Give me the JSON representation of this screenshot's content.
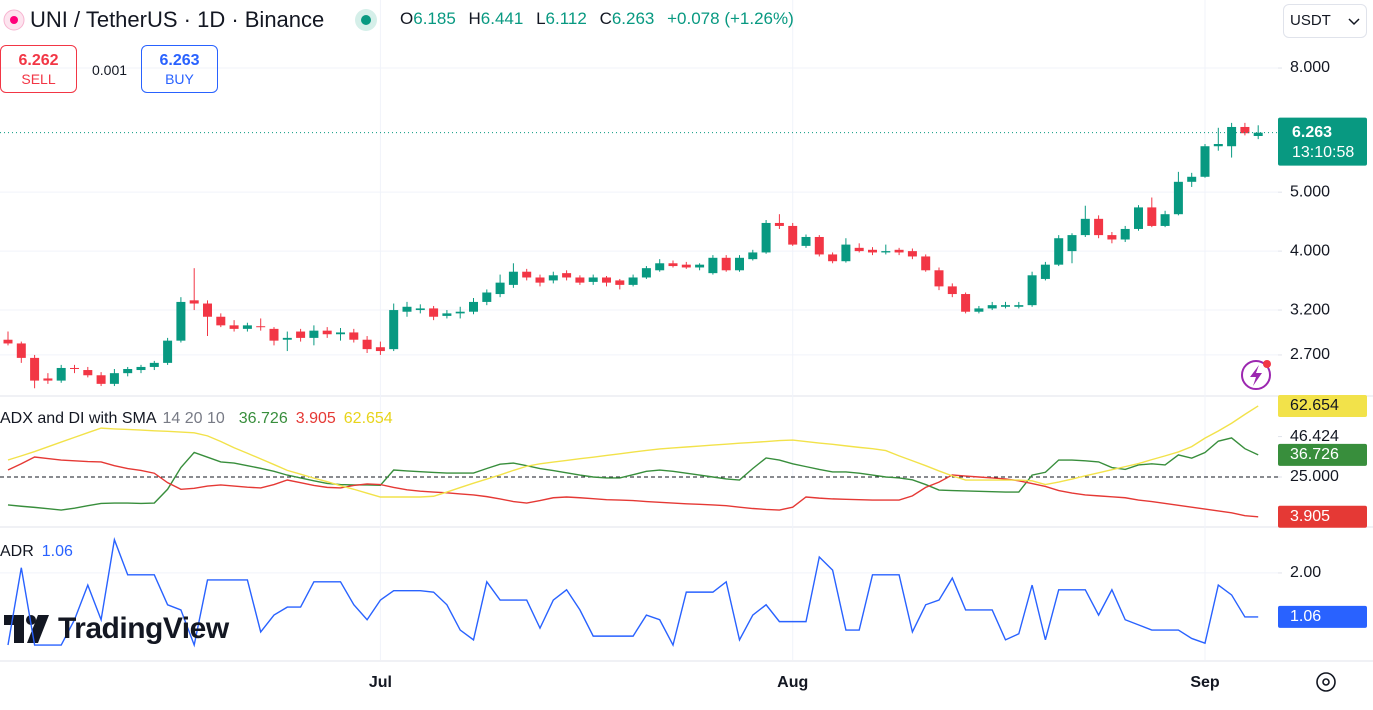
{
  "header": {
    "title": "UNI / TetherUS · 1D · Binance",
    "ohlc_labels": [
      "O",
      "H",
      "L",
      "C"
    ],
    "change": "+0.078 (+1.26%)",
    "currency": "USDT"
  },
  "trade": {
    "sell_price": "6.262",
    "sell_label": "SELL",
    "spread": "0.001",
    "buy_price": "6.263",
    "buy_label": "BUY"
  },
  "countdown": "13:10:58",
  "watermark": "TradingView",
  "chart_data": [
    {
      "type": "candlestick",
      "categories": [
        null,
        null,
        null,
        null,
        null,
        null,
        null,
        null,
        null,
        null,
        null,
        null,
        null,
        null,
        null,
        null,
        null,
        null,
        null,
        null,
        null,
        null,
        null,
        null,
        null,
        null,
        null,
        null,
        "Jul",
        null,
        null,
        null,
        null,
        null,
        null,
        null,
        null,
        null,
        null,
        null,
        null,
        null,
        null,
        null,
        null,
        null,
        null,
        null,
        null,
        null,
        null,
        null,
        null,
        null,
        null,
        null,
        null,
        null,
        null,
        "Aug",
        null,
        null,
        null,
        null,
        null,
        null,
        null,
        null,
        null,
        null,
        null,
        null,
        null,
        null,
        null,
        null,
        null,
        null,
        null,
        null,
        null,
        null,
        null,
        null,
        null,
        null,
        null,
        null,
        null,
        null,
        "Sep",
        null,
        null,
        null,
        null
      ],
      "series": [
        {
          "up_color": "#089981",
          "down_color": "#f23645",
          "open": [
            2.86,
            2.82,
            2.67,
            2.47,
            2.45,
            2.57,
            2.55,
            2.5,
            2.42,
            2.52,
            2.55,
            2.58,
            2.62,
            2.85,
            3.32,
            3.28,
            3.12,
            3.02,
            2.98,
            3.01,
            2.98,
            2.86,
            2.95,
            2.88,
            2.96,
            2.92,
            2.94,
            2.86,
            2.78,
            2.76,
            3.18,
            3.2,
            3.22,
            3.13,
            3.16,
            3.18,
            3.3,
            3.4,
            3.52,
            3.7,
            3.62,
            3.58,
            3.68,
            3.62,
            3.56,
            3.62,
            3.58,
            3.52,
            3.62,
            3.72,
            3.82,
            3.8,
            3.76,
            3.68,
            3.9,
            3.72,
            3.88,
            3.98,
            4.45,
            4.4,
            4.08,
            4.22,
            3.95,
            3.85,
            4.05,
            4.02,
            3.98,
            4.02,
            4.0,
            3.92,
            3.72,
            3.5,
            3.4,
            3.18,
            3.22,
            3.24,
            3.24,
            3.26,
            3.6,
            3.8,
            4.0,
            4.25,
            4.52,
            4.25,
            4.18,
            4.35,
            4.72,
            4.4,
            4.6,
            5.2,
            5.3,
            5.95,
            5.95,
            6.4,
            6.185
          ],
          "high": [
            2.95,
            2.84,
            2.7,
            2.52,
            2.6,
            2.6,
            2.58,
            2.53,
            2.56,
            2.58,
            2.6,
            2.64,
            2.88,
            3.36,
            3.75,
            3.32,
            3.16,
            3.08,
            3.05,
            3.1,
            3.0,
            2.95,
            2.98,
            3.02,
            3.0,
            2.99,
            2.98,
            2.9,
            2.84,
            3.28,
            3.3,
            3.27,
            3.25,
            3.2,
            3.24,
            3.35,
            3.46,
            3.66,
            3.82,
            3.74,
            3.66,
            3.7,
            3.72,
            3.65,
            3.66,
            3.64,
            3.6,
            3.66,
            3.78,
            3.88,
            3.86,
            3.84,
            3.82,
            3.94,
            3.94,
            3.94,
            4.02,
            4.5,
            4.6,
            4.45,
            4.26,
            4.25,
            3.98,
            4.2,
            4.12,
            4.06,
            4.1,
            4.05,
            4.04,
            3.95,
            3.76,
            3.54,
            3.42,
            3.25,
            3.3,
            3.3,
            3.3,
            3.7,
            3.84,
            4.25,
            4.28,
            4.75,
            4.58,
            4.3,
            4.4,
            4.76,
            4.9,
            4.66,
            5.4,
            5.38,
            6.0,
            6.38,
            6.5,
            6.5,
            6.441
          ],
          "low": [
            2.8,
            2.62,
            2.38,
            2.42,
            2.43,
            2.52,
            2.48,
            2.4,
            2.4,
            2.49,
            2.52,
            2.55,
            2.6,
            2.83,
            3.2,
            2.9,
            3.0,
            2.95,
            2.95,
            2.96,
            2.8,
            2.74,
            2.84,
            2.8,
            2.88,
            2.85,
            2.83,
            2.72,
            2.7,
            2.74,
            3.12,
            3.16,
            3.08,
            3.1,
            3.1,
            3.15,
            3.26,
            3.36,
            3.48,
            3.58,
            3.5,
            3.54,
            3.58,
            3.52,
            3.52,
            3.5,
            3.46,
            3.5,
            3.6,
            3.7,
            3.76,
            3.74,
            3.72,
            3.66,
            3.7,
            3.7,
            3.86,
            3.96,
            4.35,
            4.08,
            4.05,
            3.92,
            3.82,
            3.83,
            3.98,
            3.94,
            3.95,
            3.94,
            3.88,
            3.7,
            3.45,
            3.36,
            3.16,
            3.16,
            3.2,
            3.22,
            3.22,
            3.24,
            3.58,
            3.78,
            3.82,
            4.22,
            4.2,
            4.12,
            4.14,
            4.32,
            4.38,
            4.38,
            4.58,
            5.1,
            5.28,
            5.85,
            5.7,
            6.2,
            6.112
          ],
          "close": [
            2.82,
            2.67,
            2.45,
            2.45,
            2.57,
            2.56,
            2.5,
            2.42,
            2.52,
            2.56,
            2.58,
            2.62,
            2.85,
            3.3,
            3.28,
            3.12,
            3.02,
            2.98,
            3.02,
            3.0,
            2.85,
            2.88,
            2.88,
            2.96,
            2.92,
            2.94,
            2.86,
            2.76,
            2.74,
            3.2,
            3.24,
            3.22,
            3.12,
            3.16,
            3.18,
            3.3,
            3.42,
            3.55,
            3.7,
            3.62,
            3.55,
            3.65,
            3.62,
            3.55,
            3.62,
            3.55,
            3.52,
            3.62,
            3.75,
            3.82,
            3.78,
            3.76,
            3.8,
            3.9,
            3.72,
            3.9,
            3.98,
            4.45,
            4.4,
            4.1,
            4.22,
            3.95,
            3.85,
            4.1,
            4.0,
            3.98,
            4.0,
            3.98,
            3.92,
            3.72,
            3.5,
            3.4,
            3.18,
            3.22,
            3.26,
            3.26,
            3.26,
            3.65,
            3.8,
            4.2,
            4.25,
            4.52,
            4.25,
            4.18,
            4.35,
            4.72,
            4.4,
            4.6,
            5.2,
            5.3,
            5.95,
            6.0,
            6.4,
            6.25,
            6.263
          ]
        }
      ],
      "ylim": [
        2.32,
        10.35
      ],
      "log_scale": true,
      "yticks": [
        {
          "value": 8,
          "label": "8.000"
        },
        {
          "value": 5,
          "label": "5.000"
        },
        {
          "value": 4,
          "label": "4.000"
        },
        {
          "value": 3.2,
          "label": "3.200"
        },
        {
          "value": 2.7,
          "label": "2.700"
        }
      ],
      "grid": true,
      "last_price_line": true,
      "last_price_color": "#089981"
    },
    {
      "type": "line",
      "title": "ADX and DI with SMA",
      "subtitle": "14 20 10",
      "series": [
        {
          "color": "#388e3c",
          "tag_text_color": "#ffffff",
          "values": [
            10.2,
            9.5,
            8.9,
            8.2,
            7.5,
            8.5,
            9.8,
            11.0,
            11.2,
            11.2,
            11.0,
            11.2,
            18.5,
            30.0,
            38.0,
            35.5,
            33.0,
            32.4,
            31.0,
            29.6,
            28.0,
            26.0,
            24.5,
            23.0,
            21.6,
            21.0,
            20.8,
            20.8,
            20.6,
            28.7,
            28.2,
            27.8,
            27.4,
            27.1,
            27.1,
            27.1,
            29.5,
            31.8,
            32.4,
            31.0,
            29.5,
            28.4,
            27.2,
            26.0,
            25.0,
            24.5,
            24.5,
            26.2,
            28.0,
            28.7,
            28.0,
            27.0,
            26.0,
            25.0,
            24.0,
            23.4,
            29.5,
            35.1,
            34.0,
            32.0,
            30.5,
            29.0,
            27.7,
            27.7,
            27.0,
            26.0,
            25.0,
            24.5,
            23.5,
            21.0,
            18.1,
            17.8,
            17.6,
            17.4,
            17.2,
            17.0,
            17.0,
            26.0,
            27.5,
            34.0,
            34.0,
            33.6,
            33.0,
            30.0,
            29.0,
            31.4,
            32.0,
            31.4,
            36.7,
            35.0,
            38.0,
            44.0,
            45.7,
            40.0,
            36.726
          ]
        },
        {
          "color": "#e53935",
          "tag_text_color": "#ffffff",
          "values": [
            28.7,
            32.0,
            35.6,
            34.8,
            34.0,
            33.6,
            33.2,
            33.0,
            31.0,
            29.5,
            28.5,
            27.0,
            22.0,
            18.5,
            19.0,
            20.2,
            20.8,
            20.2,
            19.6,
            19.2,
            21.0,
            23.4,
            22.0,
            20.5,
            19.5,
            19.2,
            20.5,
            21.3,
            21.0,
            19.5,
            18.2,
            17.5,
            17.0,
            16.6,
            16.0,
            15.5,
            14.6,
            13.4,
            12.0,
            11.2,
            12.5,
            14.0,
            14.4,
            14.0,
            13.5,
            13.0,
            12.8,
            12.5,
            12.0,
            11.6,
            11.2,
            10.8,
            10.5,
            10.2,
            9.8,
            9.0,
            8.3,
            7.8,
            7.5,
            9.0,
            14.4,
            13.8,
            13.4,
            13.2,
            13.0,
            12.8,
            12.8,
            12.8,
            15.0,
            19.5,
            22.3,
            26.1,
            25.5,
            25.0,
            24.5,
            24.0,
            23.0,
            21.5,
            20.0,
            17.8,
            16.5,
            15.5,
            15.0,
            14.5,
            14.0,
            12.8,
            12.0,
            11.0,
            10.0,
            9.0,
            8.0,
            7.0,
            6.0,
            4.5,
            3.905
          ]
        },
        {
          "color": "#f2e24a",
          "tag_text_color": "#131722",
          "values": [
            34.0,
            36.2,
            38.5,
            41.0,
            43.5,
            46.0,
            48.5,
            50.9,
            50.5,
            50.2,
            49.9,
            49.5,
            49.2,
            48.8,
            48.4,
            46.8,
            43.8,
            40.5,
            37.6,
            34.6,
            31.6,
            28.5,
            26.5,
            24.4,
            22.5,
            20.4,
            18.5,
            16.4,
            14.4,
            14.4,
            14.4,
            14.4,
            14.8,
            17.0,
            19.4,
            21.7,
            23.9,
            26.1,
            28.5,
            30.7,
            32.0,
            32.9,
            33.8,
            34.7,
            35.5,
            36.4,
            37.3,
            38.2,
            39.1,
            39.9,
            40.4,
            40.9,
            41.4,
            41.9,
            42.4,
            42.9,
            43.3,
            43.8,
            44.3,
            44.6,
            43.8,
            43.0,
            42.3,
            41.5,
            40.7,
            40.0,
            39.0,
            36.2,
            33.6,
            31.0,
            28.2,
            25.6,
            23.4,
            23.4,
            23.4,
            23.4,
            23.4,
            23.0,
            21.0,
            22.3,
            23.9,
            25.6,
            27.2,
            28.9,
            30.5,
            32.1,
            34.2,
            36.2,
            38.3,
            41.1,
            45.6,
            49.4,
            53.5,
            58.2,
            62.654
          ]
        }
      ],
      "ylim": [
        -1.5,
        67.4
      ],
      "yticks": [
        {
          "value": 46.424,
          "label": "46.424"
        },
        {
          "value": 25,
          "label": "25.000"
        }
      ],
      "grid": false,
      "hlines": [
        {
          "value": 25,
          "style": "dashed",
          "color": "#131722"
        }
      ],
      "last_value_tags": true
    },
    {
      "type": "line",
      "title": "ADR",
      "series": [
        {
          "color": "#2962ff",
          "tag_text_color": "#ffffff",
          "values": [
            0.46,
            2.11,
            0.46,
            0.46,
            0.46,
            1.0,
            1.74,
            1.0,
            2.71,
            1.96,
            1.96,
            1.96,
            1.32,
            1.21,
            0.46,
            1.85,
            1.85,
            1.85,
            1.85,
            0.74,
            1.1,
            1.27,
            1.27,
            1.81,
            1.81,
            1.81,
            1.32,
            1.0,
            1.42,
            1.62,
            1.62,
            1.62,
            1.59,
            1.32,
            0.78,
            0.57,
            1.81,
            1.42,
            1.42,
            1.42,
            0.82,
            1.42,
            1.64,
            1.21,
            0.65,
            0.65,
            0.65,
            0.65,
            1.1,
            1.0,
            0.46,
            1.59,
            1.59,
            1.59,
            1.81,
            0.57,
            1.1,
            1.32,
            0.96,
            0.96,
            0.96,
            2.34,
            2.06,
            0.78,
            0.78,
            1.96,
            1.96,
            1.96,
            0.74,
            1.32,
            1.42,
            1.89,
            1.21,
            1.21,
            1.21,
            0.57,
            0.7,
            1.74,
            0.57,
            1.64,
            1.64,
            1.64,
            1.1,
            1.64,
            1.0,
            0.89,
            0.78,
            0.78,
            0.78,
            0.6,
            0.5,
            1.74,
            1.53,
            1.06,
            1.06
          ]
        }
      ],
      "ylim": [
        0.14,
        2.96
      ],
      "yticks": [
        {
          "value": 2,
          "label": "2.00"
        }
      ],
      "grid": true,
      "last_value_tags": true
    }
  ]
}
